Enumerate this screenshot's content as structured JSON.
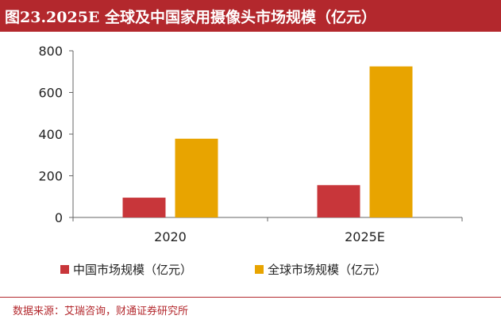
{
  "title": "图23.2025E 全球及中国家用摄像头市场规模（亿元）",
  "source": "数据来源：艾瑞咨询，财通证券研究所",
  "chart_data": {
    "type": "bar",
    "title": "图23.2025E 全球及中国家用摄像头市场规模（亿元）",
    "categories": [
      "2020",
      "2025E"
    ],
    "series": [
      {
        "name": "中国市场规模（亿元）",
        "values": [
          95,
          155
        ],
        "color": "#c8363a"
      },
      {
        "name": "全球市场规模（亿元）",
        "values": [
          378,
          725
        ],
        "color": "#e8a400"
      }
    ],
    "y_ticks": [
      0,
      200,
      400,
      600,
      800
    ],
    "ylim": [
      0,
      800
    ],
    "grid": false,
    "legend": "bottom"
  }
}
